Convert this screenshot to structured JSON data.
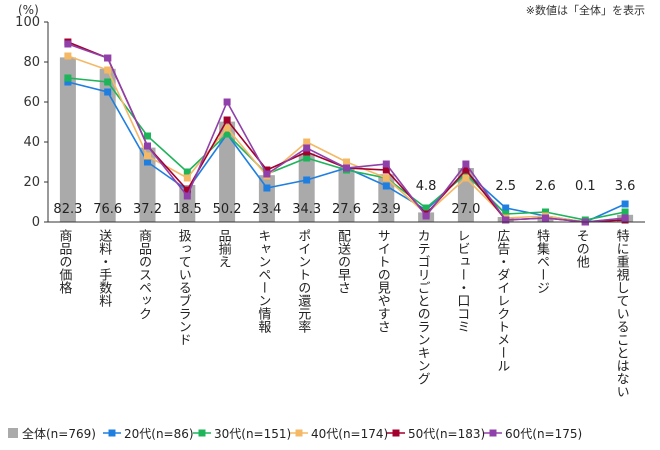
{
  "chart_data": {
    "type": "bar",
    "unit_label": "(%)",
    "note": "※数値は「全体」を表示",
    "ylim": [
      0,
      100
    ],
    "yticks": [
      0,
      20,
      40,
      60,
      80,
      100
    ],
    "grid": false,
    "legend_position": "bottom",
    "categories": [
      "商品の価格",
      "送料・手数料",
      "商品のスペック",
      "扱っているブランド",
      "品揃え",
      "キャンペーン情報",
      "ポイントの還元率",
      "配送の早さ",
      "サイトの見やすさ",
      "カテゴリごとのランキング",
      "レビュー・口コミ",
      "広告・ダイレクトメール",
      "特集ページ",
      "その他",
      "特に重視していることはない"
    ],
    "bar_series": {
      "name": "全体(n=769)",
      "color": "#aaaaaa",
      "values": [
        82.3,
        76.6,
        37.2,
        18.5,
        50.2,
        23.4,
        34.3,
        27.6,
        23.9,
        4.8,
        27.0,
        2.5,
        2.6,
        0.1,
        3.6
      ],
      "labels": [
        "82.3",
        "76.6",
        "37.2",
        "18.5",
        "50.2",
        "23.4",
        "34.3",
        "27.6",
        "23.9",
        "4.8",
        "27.0",
        "2.5",
        "2.6",
        "0.1",
        "3.6"
      ]
    },
    "series": [
      {
        "name": "20代(n=86)",
        "color": "#1f7fe0",
        "values": [
          70,
          65,
          30,
          16,
          44,
          17,
          21,
          27,
          18,
          6,
          25,
          7,
          3,
          0,
          9
        ]
      },
      {
        "name": "30代(n=151)",
        "color": "#1db45a",
        "values": [
          72,
          70,
          43,
          25,
          44,
          24,
          32,
          26,
          22,
          7,
          24,
          4,
          5,
          1,
          5
        ]
      },
      {
        "name": "40代(n=174)",
        "color": "#f5b865",
        "values": [
          83,
          76,
          33,
          22,
          47,
          23,
          40,
          30,
          22,
          4,
          22,
          2,
          3,
          0,
          2
        ]
      },
      {
        "name": "50代(n=183)",
        "color": "#a3002d",
        "values": [
          90,
          82,
          38,
          16,
          51,
          26,
          35,
          27,
          26,
          4,
          26,
          1,
          2,
          0,
          1
        ]
      },
      {
        "name": "60代(n=175)",
        "color": "#9040aa",
        "values": [
          89,
          82,
          38,
          13,
          60,
          24,
          37,
          27,
          29,
          3,
          29,
          1,
          2,
          0,
          2
        ]
      }
    ]
  }
}
